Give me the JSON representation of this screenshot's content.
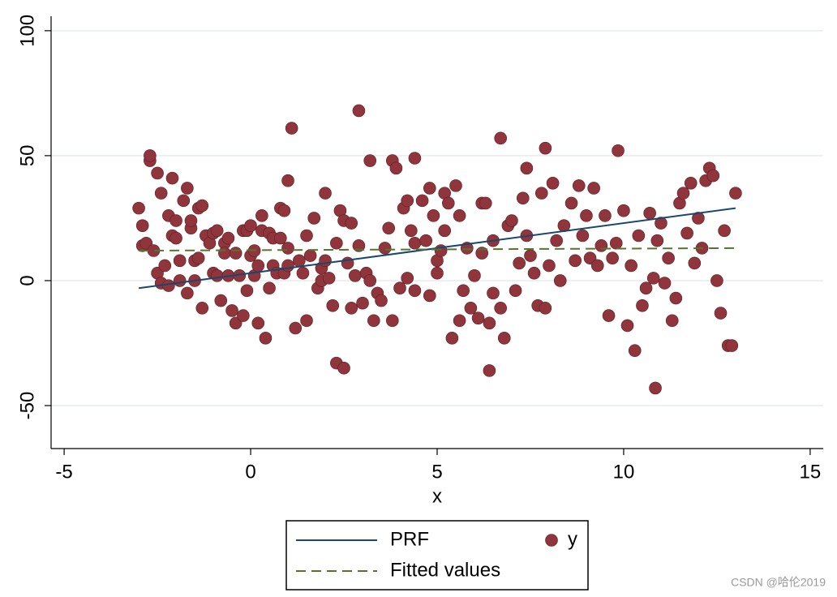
{
  "chart_data": {
    "type": "scatter",
    "xlabel": "x",
    "xlim": [
      -5.35,
      15.35
    ],
    "xticks": [
      -5,
      0,
      5,
      10,
      15
    ],
    "ylim": [
      -67.2,
      105.8
    ],
    "yticks": [
      -50,
      0,
      50,
      100
    ],
    "grid": true,
    "series": [
      {
        "name": "PRF",
        "mode": "line",
        "dash": false,
        "color": "#1a476f",
        "x": [
          -3,
          13
        ],
        "values": [
          -3,
          29
        ]
      },
      {
        "name": "y",
        "mode": "marker",
        "color": "#90353b",
        "x": [
          -3,
          -2.9,
          -2.9,
          -2.8,
          -2.7,
          -2.7,
          -2.6,
          -2.5,
          -2.5,
          -2.4,
          -2.4,
          -2.3,
          -2.2,
          -2.2,
          -2.1,
          -2.1,
          -2,
          -2,
          -1.9,
          -1.9,
          -1.8,
          -1.7,
          -1.7,
          -1.6,
          -1.6,
          -1.5,
          -1.5,
          -1.4,
          -1.4,
          -1.3,
          -1.3,
          -1.2,
          -1.1,
          -1,
          -1,
          -0.9,
          -0.9,
          -0.8,
          -0.7,
          -0.7,
          -0.6,
          -0.6,
          -0.5,
          -0.4,
          -0.4,
          -0.3,
          -0.2,
          -0.2,
          -0.1,
          -0.1,
          0,
          0,
          0.1,
          0.1,
          0.2,
          0.2,
          0.3,
          0.3,
          0.4,
          0.5,
          0.5,
          0.6,
          0.6,
          0.7,
          0.8,
          0.8,
          0.9,
          0.9,
          1,
          1,
          1,
          1.1,
          1.2,
          1.3,
          1.4,
          1.5,
          1.5,
          1.6,
          1.7,
          1.8,
          1.9,
          1.9,
          2,
          2,
          2.1,
          2.2,
          2.3,
          2.3,
          2.4,
          2.5,
          2.5,
          2.6,
          2.7,
          2.7,
          2.8,
          2.9,
          2.9,
          3,
          3.1,
          3.2,
          3.2,
          3.3,
          3.4,
          3.5,
          3.6,
          3.7,
          3.8,
          3.8,
          3.9,
          4,
          4.1,
          4.2,
          4.2,
          4.3,
          4.4,
          4.4,
          4.4,
          4.6,
          4.7,
          4.8,
          4.8,
          4.9,
          5,
          5,
          5.1,
          5.2,
          5.2,
          5.3,
          5.4,
          5.5,
          5.6,
          5.6,
          5.7,
          5.8,
          5.9,
          6,
          6.1,
          6.2,
          6.2,
          6.3,
          6.4,
          6.5,
          6.5,
          6.4,
          6.7,
          6.8,
          6.9,
          7,
          6.7,
          7.1,
          7.2,
          7.3,
          7.4,
          7.5,
          7.6,
          7.4,
          7.7,
          7.8,
          7.9,
          8,
          8.1,
          8.2,
          8.3,
          8.4,
          7.9,
          8.6,
          8.7,
          8.8,
          8.9,
          9,
          9.1,
          9.2,
          9.3,
          9.4,
          9.5,
          9.6,
          9.7,
          9.8,
          9.85,
          10,
          10.1,
          10.2,
          10.3,
          10.4,
          10.5,
          10.6,
          10.7,
          10.8,
          10.9,
          10.85,
          11,
          11.1,
          11.2,
          11.3,
          11.4,
          11.5,
          11.6,
          11.7,
          11.8,
          11.9,
          12,
          12.1,
          12.2,
          12.3,
          12.4,
          12.5,
          12.6,
          12.7,
          12.8,
          12.9,
          13
        ],
        "values": [
          29,
          22,
          14,
          15,
          48,
          50,
          12,
          43,
          3,
          -1,
          35,
          6,
          26,
          -2,
          41,
          18,
          24,
          17,
          0,
          8,
          32,
          -5,
          37,
          21,
          24,
          0,
          8,
          29,
          9,
          -11,
          30,
          18,
          15,
          19,
          3,
          20,
          2,
          -8,
          15,
          11,
          17,
          2,
          -12,
          -17,
          11,
          2,
          20,
          -14,
          -4,
          20,
          22,
          10,
          12,
          2,
          6,
          -17,
          26,
          20,
          -23,
          19,
          -3,
          6,
          17,
          3,
          29,
          17,
          28,
          3,
          13,
          6,
          40,
          61,
          -19,
          8,
          3,
          18,
          -16,
          10,
          25,
          -3,
          5,
          0,
          8,
          35,
          1,
          -10,
          15,
          -33,
          28,
          -35,
          24,
          7,
          23,
          -11,
          2,
          68,
          14,
          -9,
          3,
          48,
          0,
          -16,
          -5,
          -8,
          13,
          21,
          48,
          -16,
          45,
          -3,
          29,
          1,
          32,
          20,
          -4,
          15,
          49,
          32,
          16,
          -6,
          37,
          26,
          8,
          3,
          12,
          35,
          20,
          31,
          -23,
          38,
          -16,
          26,
          -4,
          13,
          -11,
          2,
          -15,
          11,
          31,
          31,
          -17,
          16,
          -5,
          -36,
          -11,
          -23,
          22,
          24,
          57,
          -4,
          7,
          33,
          18,
          10,
          3,
          45,
          -10,
          35,
          -11,
          6,
          39,
          16,
          0,
          22,
          53,
          31,
          8,
          38,
          18,
          26,
          9,
          37,
          6,
          14,
          26,
          -14,
          9,
          15,
          52,
          28,
          -18,
          6,
          -28,
          18,
          -10,
          -3,
          27,
          1,
          16,
          -43,
          23,
          -1,
          9,
          -16,
          -7,
          31,
          35,
          19,
          39,
          7,
          25,
          13,
          40,
          45,
          42,
          0,
          -13,
          20,
          -26,
          -26,
          35
        ]
      },
      {
        "name": "Fitted values",
        "mode": "line",
        "dash": true,
        "color": "#55752f",
        "x": [
          -3,
          13
        ],
        "values": [
          12,
          13
        ]
      }
    ]
  },
  "watermark": "CSDN @哈伦2019"
}
